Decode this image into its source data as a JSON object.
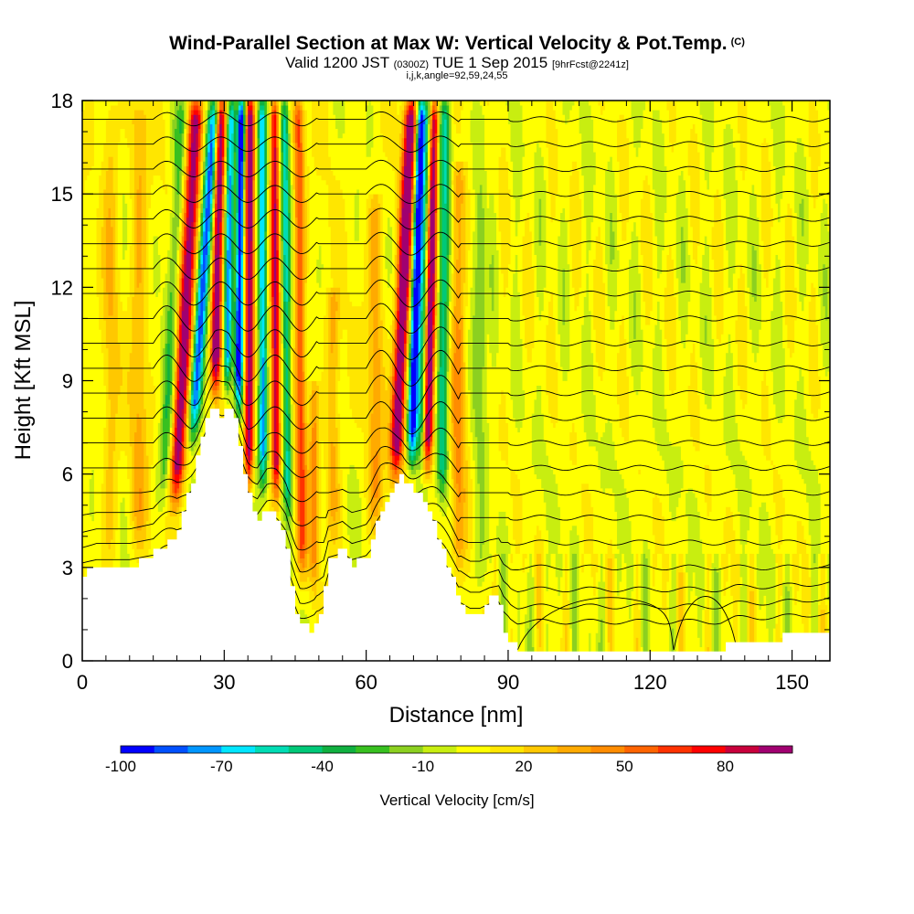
{
  "title": {
    "main": "Wind-Parallel Section at Max W: Vertical Velocity & Pot.Temp.",
    "copyright": "(C)",
    "valid_a": "Valid 1200 JST",
    "valid_utc": "(0300Z)",
    "valid_b": "TUE 1 Sep 2015",
    "forecast": "[9hrFcst@2241z]",
    "indices": "i,j,k,angle=92,59,24,55"
  },
  "chart_data": {
    "type": "heatmap",
    "title": "Wind-Parallel Section at Max W: Vertical Velocity & Pot.Temp.",
    "xlabel": "Distance [nm]",
    "ylabel": "Height [Kft MSL]",
    "xlim": [
      0,
      158
    ],
    "ylim": [
      0,
      18
    ],
    "x_ticks": [
      0,
      30,
      60,
      90,
      120,
      150
    ],
    "y_ticks": [
      0,
      3,
      6,
      9,
      12,
      15,
      18
    ],
    "colorbar": {
      "title": "Vertical Velocity [cm/s]",
      "tick_labels": [
        "-100",
        "-70",
        "-40",
        "-10",
        "20",
        "50",
        "80"
      ],
      "levels": [
        -100,
        -90,
        -80,
        -70,
        -60,
        -50,
        -40,
        -30,
        -20,
        -10,
        0,
        10,
        20,
        30,
        40,
        50,
        60,
        70,
        80,
        90,
        100
      ],
      "colors": [
        "#0000ff",
        "#0050ff",
        "#0096ff",
        "#00e6ff",
        "#00dcb4",
        "#00c878",
        "#10b040",
        "#38c020",
        "#8cd020",
        "#c8ee10",
        "#ffff00",
        "#ffe600",
        "#ffc800",
        "#ffaa00",
        "#ff8c00",
        "#ff6400",
        "#ff3200",
        "#ff0000",
        "#c8003c",
        "#a00070"
      ]
    },
    "terrain": [
      [
        0,
        2.7
      ],
      [
        3,
        3.0
      ],
      [
        10,
        3.0
      ],
      [
        16,
        3.5
      ],
      [
        20,
        4.0
      ],
      [
        23,
        5.5
      ],
      [
        24.5,
        6.5
      ],
      [
        26.5,
        7.7
      ],
      [
        28,
        8.2
      ],
      [
        29.5,
        7.9
      ],
      [
        31,
        8.2
      ],
      [
        33,
        7.5
      ],
      [
        35,
        5.5
      ],
      [
        37,
        4.5
      ],
      [
        39,
        5.0
      ],
      [
        41,
        4.7
      ],
      [
        43,
        4.0
      ],
      [
        45,
        2.0
      ],
      [
        46,
        1.1
      ],
      [
        49,
        1.0
      ],
      [
        51,
        1.6
      ],
      [
        52,
        3.2
      ],
      [
        55,
        3.6
      ],
      [
        57,
        3.0
      ],
      [
        61,
        3.5
      ],
      [
        63,
        4.7
      ],
      [
        65.5,
        5.4
      ],
      [
        67.5,
        6.0
      ],
      [
        69,
        5.7
      ],
      [
        72,
        5.3
      ],
      [
        75,
        4.2
      ],
      [
        80,
        2.0
      ],
      [
        82,
        1.5
      ],
      [
        84,
        1.5
      ],
      [
        86,
        1.9
      ],
      [
        88,
        2.1
      ],
      [
        89,
        1.2
      ],
      [
        90,
        0.8
      ],
      [
        92,
        0.35
      ],
      [
        135,
        0.35
      ],
      [
        138,
        0.6
      ],
      [
        152,
        0.8
      ],
      [
        155,
        1.0
      ],
      [
        158,
        1.0
      ]
    ],
    "updrafts_cm_s": [
      {
        "x": 20,
        "y": 8.5,
        "w": 90
      },
      {
        "x": 30,
        "y": 13,
        "w": 100
      },
      {
        "x": 37,
        "y": 13,
        "w": 90
      },
      {
        "x": 43,
        "y": 13,
        "w": 70
      },
      {
        "x": 68,
        "y": 10,
        "w": 100
      },
      {
        "x": 73,
        "y": 14,
        "w": 100
      }
    ],
    "downdrafts_cm_s": [
      {
        "x": 25,
        "y": 12,
        "w": -90
      },
      {
        "x": 33,
        "y": 14,
        "w": -100
      },
      {
        "x": 40,
        "y": 14,
        "w": -70
      },
      {
        "x": 71,
        "y": 11.5,
        "w": -100
      }
    ],
    "theta_contours": "potential temperature isentropes (unlabeled, 0.8 kft spacing)"
  }
}
